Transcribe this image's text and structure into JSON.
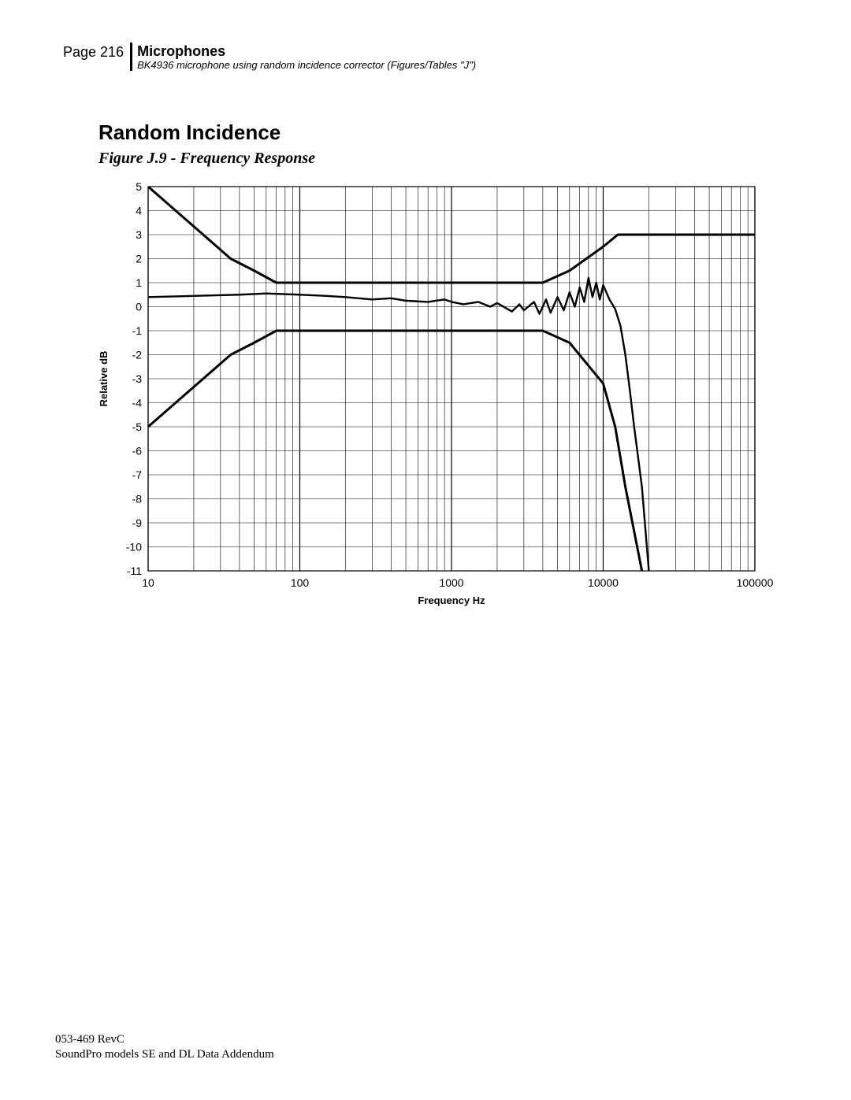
{
  "header": {
    "page_label": "Page 216",
    "title": "Microphones",
    "subtitle": "BK4936 microphone using random incidence corrector (Figures/Tables \"J\")"
  },
  "section": {
    "title": "Random Incidence",
    "figure_caption": "Figure J.9 - Frequency Response"
  },
  "chart": {
    "type": "line",
    "xlabel": "Frequency Hz",
    "ylabel": "Relative dB",
    "x_log_base": 10,
    "x_ticks_major": [
      10,
      100,
      1000,
      10000,
      100000
    ],
    "x_tick_labels": [
      "10",
      "100",
      "1000",
      "10000",
      "100000"
    ],
    "ylim": [
      -11,
      5
    ],
    "y_ticks": [
      -11,
      -10,
      -9,
      -8,
      -7,
      -6,
      -5,
      -4,
      -3,
      -2,
      -1,
      0,
      1,
      2,
      3,
      4,
      5
    ],
    "background_color": "#ffffff",
    "grid_color": "#000000",
    "grid_major_width": 1.2,
    "grid_minor_width": 0.6,
    "line_color": "#000000",
    "line_width_bounds": 3.0,
    "line_width_data": 2.4,
    "series": {
      "upper_bound": [
        [
          10,
          5.0
        ],
        [
          35,
          2.0
        ],
        [
          50,
          1.5
        ],
        [
          70,
          1.0
        ],
        [
          4000,
          1.0
        ],
        [
          6000,
          1.5
        ],
        [
          10000,
          2.5
        ],
        [
          12500,
          3.0
        ],
        [
          100000,
          3.0
        ]
      ],
      "lower_bound": [
        [
          10,
          -5.0
        ],
        [
          35,
          -2.0
        ],
        [
          50,
          -1.5
        ],
        [
          70,
          -1.0
        ],
        [
          4000,
          -1.0
        ],
        [
          6000,
          -1.5
        ],
        [
          10000,
          -3.2
        ],
        [
          12000,
          -5.0
        ],
        [
          14000,
          -7.5
        ],
        [
          18000,
          -11.0
        ]
      ],
      "response": [
        [
          10,
          0.4
        ],
        [
          20,
          0.45
        ],
        [
          40,
          0.5
        ],
        [
          60,
          0.55
        ],
        [
          100,
          0.5
        ],
        [
          150,
          0.45
        ],
        [
          200,
          0.4
        ],
        [
          300,
          0.3
        ],
        [
          400,
          0.35
        ],
        [
          500,
          0.25
        ],
        [
          700,
          0.2
        ],
        [
          900,
          0.3
        ],
        [
          1000,
          0.2
        ],
        [
          1200,
          0.1
        ],
        [
          1500,
          0.2
        ],
        [
          1800,
          0.0
        ],
        [
          2000,
          0.15
        ],
        [
          2500,
          -0.2
        ],
        [
          2800,
          0.1
        ],
        [
          3000,
          -0.15
        ],
        [
          3500,
          0.2
        ],
        [
          3800,
          -0.3
        ],
        [
          4200,
          0.3
        ],
        [
          4500,
          -0.25
        ],
        [
          5000,
          0.4
        ],
        [
          5500,
          -0.15
        ],
        [
          6000,
          0.6
        ],
        [
          6500,
          0.0
        ],
        [
          7000,
          0.8
        ],
        [
          7500,
          0.2
        ],
        [
          8000,
          1.2
        ],
        [
          8500,
          0.4
        ],
        [
          9000,
          1.0
        ],
        [
          9500,
          0.3
        ],
        [
          10000,
          0.9
        ],
        [
          11000,
          0.3
        ],
        [
          12000,
          -0.1
        ],
        [
          13000,
          -0.8
        ],
        [
          14000,
          -2.0
        ],
        [
          15000,
          -3.5
        ],
        [
          16000,
          -5.0
        ],
        [
          18000,
          -7.5
        ],
        [
          20000,
          -11.0
        ]
      ]
    },
    "label_fontsize": 13,
    "tick_fontsize": 14
  },
  "footer": {
    "line1": "053-469 RevC",
    "line2": "SoundPro models SE and DL Data Addendum"
  }
}
